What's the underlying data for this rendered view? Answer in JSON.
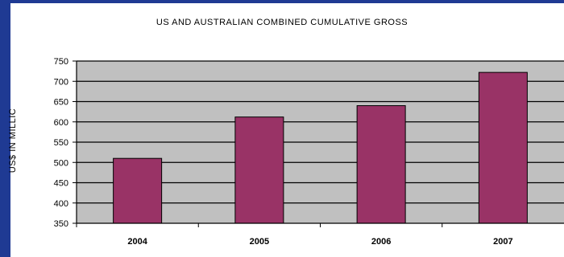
{
  "chart_data": {
    "type": "bar",
    "title": "US AND AUSTRALIAN COMBINED CUMULATIVE GROSS",
    "xlabel": "",
    "ylabel": "US$ IN MILLIC",
    "categories": [
      "2004",
      "2005",
      "2006",
      "2007"
    ],
    "values": [
      510,
      612,
      640,
      722
    ],
    "ylim": [
      350,
      750
    ],
    "yticks": [
      "350",
      "400",
      "450",
      "500",
      "550",
      "600",
      "650",
      "700",
      "750"
    ],
    "grid": true,
    "colors": {
      "bar": "#993366",
      "plot_background": "#c0c0c0",
      "gridline": "#000000",
      "frame": "#1f3a93"
    }
  }
}
